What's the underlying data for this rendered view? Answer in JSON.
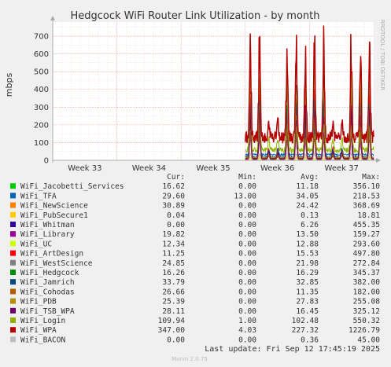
{
  "chart_data": {
    "type": "line",
    "title": "Hedgcock WiFi Router Link Utilization - by month",
    "ylabel": "mbps",
    "side_label": "RRDTOOL / TOBI OETIKER",
    "ylim": [
      0,
      780
    ],
    "yticks": [
      0,
      100,
      200,
      300,
      400,
      500,
      600,
      700
    ],
    "xlim": [
      0,
      5
    ],
    "xticks": [
      {
        "pos": 0.5,
        "label": "Week 33"
      },
      {
        "pos": 1.5,
        "label": "Week 34"
      },
      {
        "pos": 2.5,
        "label": "Week 35"
      },
      {
        "pos": 3.5,
        "label": "Week 36"
      },
      {
        "pos": 4.5,
        "label": "Week 37"
      }
    ],
    "data_start": 3.0,
    "columns": [
      "Cur:",
      "Min:",
      "Avg:",
      "Max:"
    ],
    "series": [
      {
        "name": "WiFi_Jacobetti_Services",
        "color": "#00cc00",
        "cur": "16.62",
        "min": "0.00",
        "avg": "11.18",
        "max": "356.10"
      },
      {
        "name": "WiFi_TFA",
        "color": "#0066b3",
        "cur": "29.60",
        "min": "13.00",
        "avg": "34.05",
        "max": "218.53"
      },
      {
        "name": "WiFi_NewScience",
        "color": "#ff8000",
        "cur": "30.89",
        "min": "0.00",
        "avg": "24.42",
        "max": "368.69"
      },
      {
        "name": "WiFi_PubSecure1",
        "color": "#ffcc00",
        "cur": "0.04",
        "min": "0.00",
        "avg": "0.13",
        "max": "18.81"
      },
      {
        "name": "WiFi_Whitman",
        "color": "#330099",
        "cur": "0.00",
        "min": "0.00",
        "avg": "6.26",
        "max": "455.35"
      },
      {
        "name": "WiFi_Library",
        "color": "#990099",
        "cur": "19.82",
        "min": "0.00",
        "avg": "13.50",
        "max": "159.27"
      },
      {
        "name": "WiFi_UC",
        "color": "#ccff00",
        "cur": "12.34",
        "min": "0.00",
        "avg": "12.88",
        "max": "293.60"
      },
      {
        "name": "WiFi_ArtDesign",
        "color": "#ff0000",
        "cur": "11.25",
        "min": "0.00",
        "avg": "15.53",
        "max": "497.80"
      },
      {
        "name": "WiFi_WestScience",
        "color": "#808080",
        "cur": "24.85",
        "min": "0.00",
        "avg": "21.98",
        "max": "272.84"
      },
      {
        "name": "WiFi_Hedgcock",
        "color": "#008f00",
        "cur": "16.26",
        "min": "0.00",
        "avg": "16.29",
        "max": "345.37"
      },
      {
        "name": "WiFi_Jamrich",
        "color": "#00487d",
        "cur": "33.79",
        "min": "0.00",
        "avg": "32.85",
        "max": "382.00"
      },
      {
        "name": "WiFi_Cohodas",
        "color": "#b35a00",
        "cur": "26.66",
        "min": "0.00",
        "avg": "11.35",
        "max": "182.00"
      },
      {
        "name": "WiFi_PDB",
        "color": "#b38f00",
        "cur": "25.39",
        "min": "0.00",
        "avg": "27.83",
        "max": "255.08"
      },
      {
        "name": "WiFi_TSB_WPA",
        "color": "#6b006b",
        "cur": "28.11",
        "min": "0.00",
        "avg": "16.45",
        "max": "325.12"
      },
      {
        "name": "WiFi_Login",
        "color": "#8fb300",
        "cur": "109.94",
        "min": "1.00",
        "avg": "102.48",
        "max": "550.32"
      },
      {
        "name": "WiFi_WPA",
        "color": "#b30000",
        "cur": "347.00",
        "min": "4.03",
        "avg": "227.32",
        "max": "1226.79"
      },
      {
        "name": "WiFi_BACON",
        "color": "#bebebe",
        "cur": "0.00",
        "min": "0.00",
        "avg": "0.36",
        "max": "45.00"
      }
    ],
    "last_update": "Last update: Fri Sep 12 17:45:19 2025",
    "footer": "Munin 2.0.75"
  }
}
